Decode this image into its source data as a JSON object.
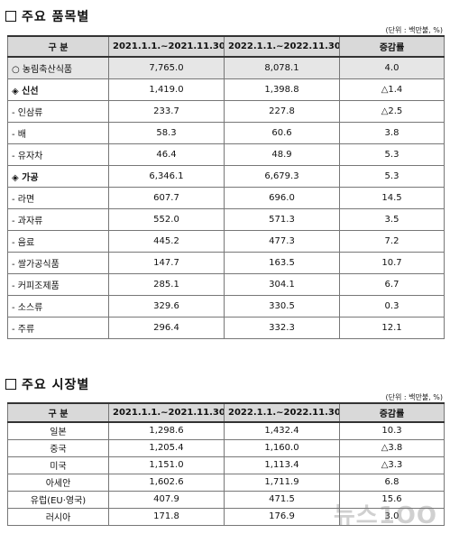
{
  "section1": {
    "title": "주요 품목별",
    "unit": "(단위 : 백만불, %)",
    "headers": [
      "구 분",
      "2021.1.1.~2021.11.30.",
      "2022.1.1.~2022.11.30.",
      "증감률"
    ],
    "rows": [
      {
        "label": "○ 농림축산식품",
        "v1": "7,765.0",
        "v2": "8,078.1",
        "rate": "4.0",
        "style": "gray"
      },
      {
        "label": "◈ 신선",
        "v1": "1,419.0",
        "v2": "1,398.8",
        "rate": "△1.4",
        "style": "bold"
      },
      {
        "label": "- 인삼류",
        "v1": "233.7",
        "v2": "227.8",
        "rate": "△2.5",
        "style": ""
      },
      {
        "label": "- 배",
        "v1": "58.3",
        "v2": "60.6",
        "rate": "3.8",
        "style": ""
      },
      {
        "label": "- 유자차",
        "v1": "46.4",
        "v2": "48.9",
        "rate": "5.3",
        "style": ""
      },
      {
        "label": "◈ 가공",
        "v1": "6,346.1",
        "v2": "6,679.3",
        "rate": "5.3",
        "style": "bold"
      },
      {
        "label": "- 라면",
        "v1": "607.7",
        "v2": "696.0",
        "rate": "14.5",
        "style": ""
      },
      {
        "label": "- 과자류",
        "v1": "552.0",
        "v2": "571.3",
        "rate": "3.5",
        "style": ""
      },
      {
        "label": "- 음료",
        "v1": "445.2",
        "v2": "477.3",
        "rate": "7.2",
        "style": ""
      },
      {
        "label": "- 쌀가공식품",
        "v1": "147.7",
        "v2": "163.5",
        "rate": "10.7",
        "style": ""
      },
      {
        "label": "- 커피조제품",
        "v1": "285.1",
        "v2": "304.1",
        "rate": "6.7",
        "style": ""
      },
      {
        "label": "- 소스류",
        "v1": "329.6",
        "v2": "330.5",
        "rate": "0.3",
        "style": ""
      },
      {
        "label": "- 주류",
        "v1": "296.4",
        "v2": "332.3",
        "rate": "12.1",
        "style": ""
      }
    ]
  },
  "section2": {
    "title": "주요 시장별",
    "unit": "(단위 : 백만불, %)",
    "headers": [
      "구 분",
      "2021.1.1.~2021.11.30.",
      "2022.1.1.~2022.11.30.",
      "증감률"
    ],
    "rows": [
      {
        "label": "일본",
        "v1": "1,298.6",
        "v2": "1,432.4",
        "rate": "10.3"
      },
      {
        "label": "중국",
        "v1": "1,205.4",
        "v2": "1,160.0",
        "rate": "△3.8"
      },
      {
        "label": "미국",
        "v1": "1,151.0",
        "v2": "1,113.4",
        "rate": "△3.3"
      },
      {
        "label": "아세안",
        "v1": "1,602.6",
        "v2": "1,711.9",
        "rate": "6.8"
      },
      {
        "label": "유럽(EU·영국)",
        "v1": "407.9",
        "v2": "471.5",
        "rate": "15.6"
      },
      {
        "label": "러시아",
        "v1": "171.8",
        "v2": "176.9",
        "rate": "3.0"
      }
    ]
  },
  "watermark": "뉴스1OO"
}
